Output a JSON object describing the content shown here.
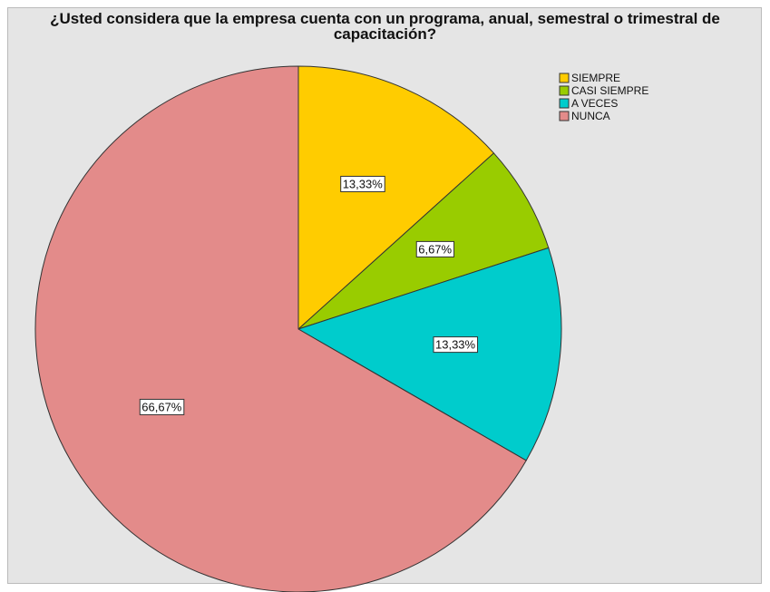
{
  "chart_data": {
    "type": "pie",
    "title": "¿Usted considera que la empresa cuenta con un programa, anual, semestral o trimestral de capacitación?",
    "categories": [
      "SIEMPRE",
      "CASI SIEMPRE",
      "A VECES",
      "NUNCA"
    ],
    "values": [
      13.33,
      6.67,
      13.33,
      66.67
    ],
    "value_labels": [
      "13,33%",
      "6,67%",
      "13,33%",
      "66,67%"
    ],
    "colors": [
      "#ffcc00",
      "#99cc00",
      "#00cccc",
      "#e38b8a"
    ],
    "legend": "top-right"
  }
}
